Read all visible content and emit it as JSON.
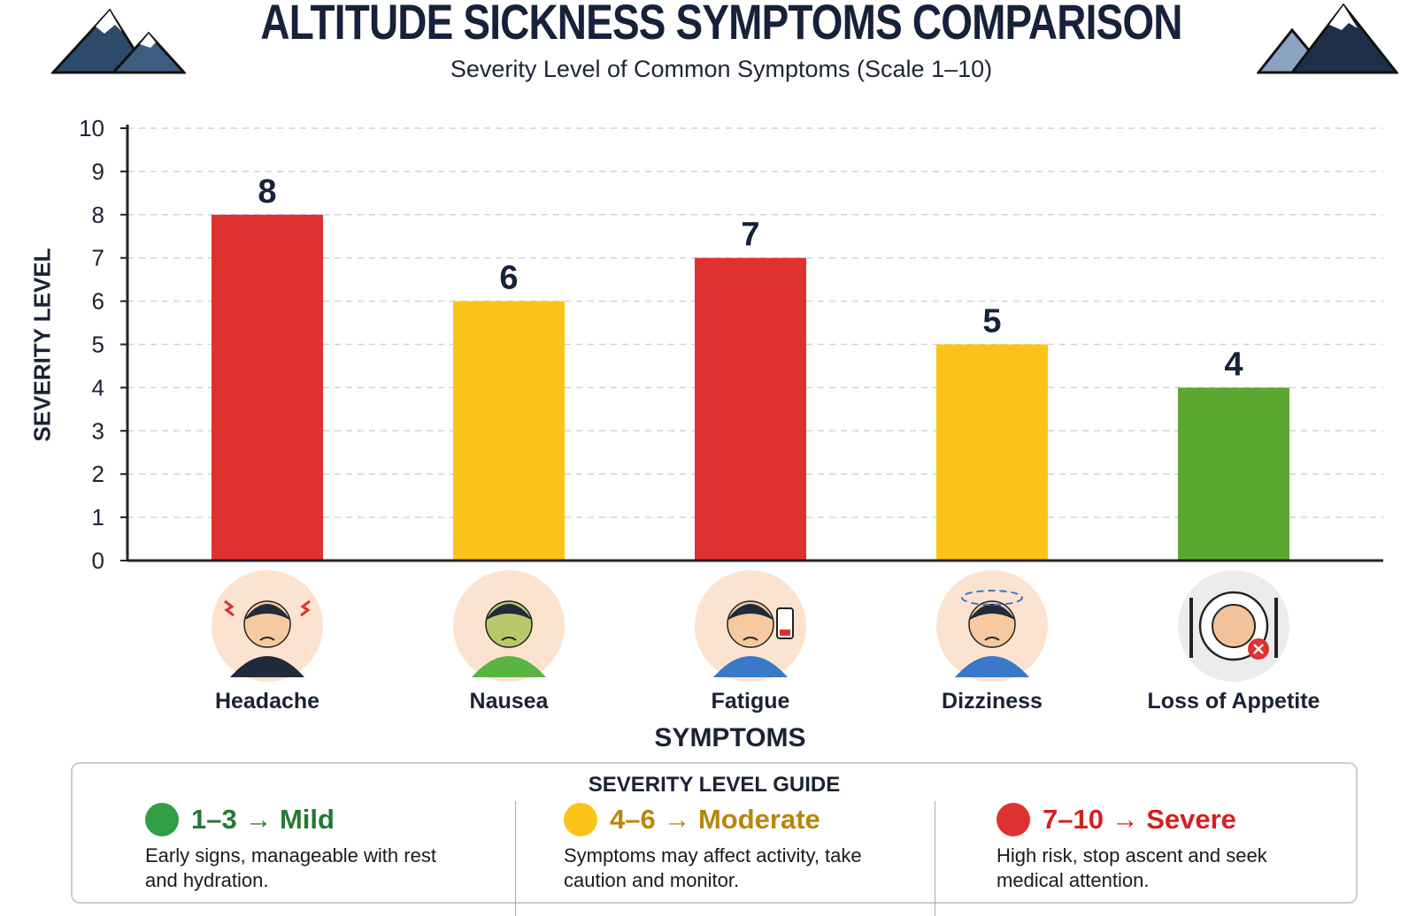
{
  "title": "ALTITUDE SICKNESS SYMPTOMS COMPARISON",
  "subtitle": "Severity Level of Common Symptoms (Scale 1–10)",
  "chart_data": {
    "type": "bar",
    "categories": [
      "Headache",
      "Nausea",
      "Fatigue",
      "Dizziness",
      "Loss of Appetite"
    ],
    "values": [
      8,
      6,
      7,
      5,
      4
    ],
    "bar_colors": [
      "#e03131",
      "#fcc419",
      "#e03131",
      "#fcc419",
      "#5aa832"
    ],
    "icons": [
      "headache-person-icon",
      "nausea-person-icon",
      "fatigue-person-icon",
      "dizziness-person-icon",
      "plate-cross-icon"
    ],
    "xlabel": "SYMPTOMS",
    "ylabel": "SEVERITY LEVEL",
    "ylim": [
      0,
      10
    ],
    "yticks": [
      "0",
      "1",
      "2",
      "3",
      "4",
      "5",
      "6",
      "7",
      "8",
      "9",
      "10"
    ],
    "grid": true,
    "data_labels": [
      "8",
      "6",
      "7",
      "5",
      "4"
    ]
  },
  "legend": {
    "title": "SEVERITY LEVEL GUIDE",
    "items": [
      {
        "range": "1–3 → Mild",
        "desc": "Early signs, manageable with rest and hydration.",
        "color": "#2f9e44",
        "text_color": "#237a32"
      },
      {
        "range": "4–6 → Moderate",
        "desc": "Symptoms may affect activity, take caution and monitor.",
        "color": "#fcc419",
        "text_color": "#b8860b"
      },
      {
        "range": "7–10 → Severe",
        "desc": "High risk, stop ascent and seek medical attention.",
        "color": "#e03131",
        "text_color": "#d42020"
      }
    ]
  }
}
